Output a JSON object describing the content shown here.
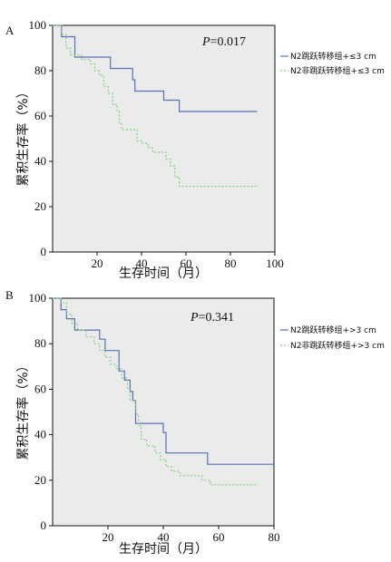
{
  "chart_data": [
    {
      "type": "line",
      "panel": "A",
      "pvalue": "0.017",
      "pvalue_prefix": "P",
      "xlabel": "生存时间（月）",
      "ylabel": "累积生存率（%）",
      "xlim": [
        0,
        100
      ],
      "ylim": [
        0,
        100
      ],
      "xticks": [
        20,
        40,
        60,
        80,
        100
      ],
      "yticks": [
        0,
        20,
        40,
        60,
        80,
        100
      ],
      "grid": false,
      "legend_position": "right",
      "series": [
        {
          "name": "N2跳跃转移组+≤3 cm",
          "color": "#5b6fb5",
          "dash": "solid",
          "points": [
            [
              0,
              100
            ],
            [
              4,
              100
            ],
            [
              4,
              95
            ],
            [
              10,
              95
            ],
            [
              10,
              86
            ],
            [
              26,
              86
            ],
            [
              26,
              81
            ],
            [
              36,
              81
            ],
            [
              36,
              76
            ],
            [
              37,
              76
            ],
            [
              37,
              71
            ],
            [
              50,
              71
            ],
            [
              50,
              67
            ],
            [
              57,
              67
            ],
            [
              57,
              62
            ],
            [
              92,
              62
            ]
          ]
        },
        {
          "name": "N2非跳跃转移组+≤3 cm",
          "color": "#7fcf7f",
          "dash": "dashed",
          "points": [
            [
              0,
              100
            ],
            [
              4,
              100
            ],
            [
              4,
              96
            ],
            [
              6,
              96
            ],
            [
              6,
              90
            ],
            [
              8,
              90
            ],
            [
              8,
              87
            ],
            [
              13,
              87
            ],
            [
              13,
              85
            ],
            [
              17,
              85
            ],
            [
              17,
              83
            ],
            [
              19,
              83
            ],
            [
              19,
              80
            ],
            [
              21,
              80
            ],
            [
              21,
              78
            ],
            [
              23,
              78
            ],
            [
              23,
              73
            ],
            [
              25,
              73
            ],
            [
              25,
              70
            ],
            [
              27,
              70
            ],
            [
              27,
              65
            ],
            [
              29,
              65
            ],
            [
              29,
              62
            ],
            [
              30,
              62
            ],
            [
              30,
              57
            ],
            [
              31,
              57
            ],
            [
              31,
              54
            ],
            [
              38,
              54
            ],
            [
              38,
              49
            ],
            [
              40,
              49
            ],
            [
              40,
              48
            ],
            [
              43,
              48
            ],
            [
              43,
              46
            ],
            [
              45,
              46
            ],
            [
              45,
              44
            ],
            [
              51,
              44
            ],
            [
              51,
              41
            ],
            [
              53,
              41
            ],
            [
              53,
              38
            ],
            [
              55,
              38
            ],
            [
              55,
              33
            ],
            [
              57,
              33
            ],
            [
              57,
              29
            ],
            [
              92,
              29
            ]
          ]
        }
      ]
    },
    {
      "type": "line",
      "panel": "B",
      "pvalue": "0.341",
      "pvalue_prefix": "P",
      "xlabel": "生存时间（月）",
      "ylabel": "累积生存率（%）",
      "xlim": [
        0,
        80
      ],
      "ylim": [
        0,
        100
      ],
      "xticks": [
        20,
        40,
        60,
        80
      ],
      "yticks": [
        0,
        20,
        40,
        60,
        80,
        100
      ],
      "grid": false,
      "legend_position": "right",
      "series": [
        {
          "name": "N2跳跃转移组+>3 cm",
          "color": "#5b6fb5",
          "dash": "solid",
          "points": [
            [
              0,
              100
            ],
            [
              3,
              100
            ],
            [
              3,
              95
            ],
            [
              5,
              95
            ],
            [
              5,
              91
            ],
            [
              8,
              91
            ],
            [
              8,
              86
            ],
            [
              17,
              86
            ],
            [
              17,
              82
            ],
            [
              19,
              82
            ],
            [
              19,
              77
            ],
            [
              24,
              77
            ],
            [
              24,
              68
            ],
            [
              26,
              68
            ],
            [
              26,
              64
            ],
            [
              28,
              64
            ],
            [
              28,
              59
            ],
            [
              29,
              59
            ],
            [
              29,
              55
            ],
            [
              30,
              55
            ],
            [
              30,
              45
            ],
            [
              40,
              45
            ],
            [
              40,
              41
            ],
            [
              41,
              41
            ],
            [
              41,
              32
            ],
            [
              56,
              32
            ],
            [
              56,
              27
            ],
            [
              80,
              27
            ]
          ]
        },
        {
          "name": "N2非跳跃转移组+>3 cm",
          "color": "#7fcf7f",
          "dash": "dashed",
          "points": [
            [
              0,
              100
            ],
            [
              3,
              100
            ],
            [
              3,
              98
            ],
            [
              5,
              98
            ],
            [
              5,
              93
            ],
            [
              7,
              93
            ],
            [
              7,
              89
            ],
            [
              9,
              89
            ],
            [
              9,
              86
            ],
            [
              12,
              86
            ],
            [
              12,
              83
            ],
            [
              15,
              83
            ],
            [
              15,
              80
            ],
            [
              17,
              80
            ],
            [
              17,
              77
            ],
            [
              19,
              77
            ],
            [
              19,
              74
            ],
            [
              21,
              74
            ],
            [
              21,
              71
            ],
            [
              23,
              71
            ],
            [
              23,
              69
            ],
            [
              25,
              69
            ],
            [
              25,
              65
            ],
            [
              27,
              65
            ],
            [
              27,
              60
            ],
            [
              28,
              60
            ],
            [
              28,
              55
            ],
            [
              30,
              55
            ],
            [
              30,
              49
            ],
            [
              31,
              49
            ],
            [
              31,
              44
            ],
            [
              32,
              44
            ],
            [
              32,
              38
            ],
            [
              34,
              38
            ],
            [
              34,
              35
            ],
            [
              37,
              35
            ],
            [
              37,
              32
            ],
            [
              39,
              32
            ],
            [
              39,
              29
            ],
            [
              41,
              29
            ],
            [
              41,
              26
            ],
            [
              43,
              26
            ],
            [
              43,
              24
            ],
            [
              46,
              24
            ],
            [
              46,
              22
            ],
            [
              54,
              22
            ],
            [
              54,
              20
            ],
            [
              57,
              20
            ],
            [
              57,
              18
            ],
            [
              74,
              18
            ]
          ]
        }
      ]
    }
  ]
}
